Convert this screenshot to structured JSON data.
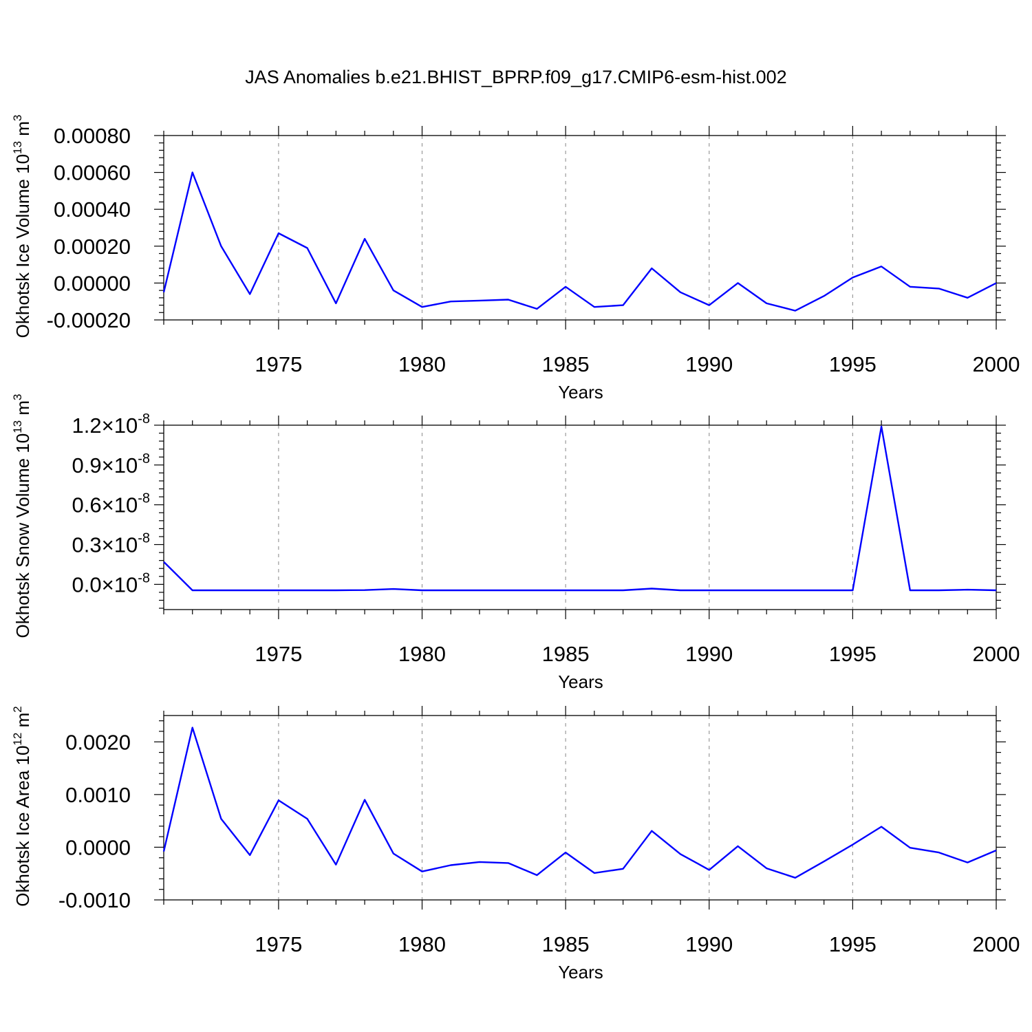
{
  "title": "JAS Anomalies b.e21.BHIST_BPRP.f09_g17.CMIP6-esm-hist.002",
  "chart_data": [
    {
      "type": "line",
      "ylabel": "Okhotsk Ice Volume",
      "yunit": {
        "base": "10",
        "exp": "13",
        "unit": "m",
        "unit_exp": "3"
      },
      "xlabel": "Years",
      "xlim": [
        1971,
        2000
      ],
      "ylim": [
        -0.0002,
        0.0008
      ],
      "ymajor": [
        -0.0002,
        0.0,
        0.0002,
        0.0004,
        0.0006,
        0.0008
      ],
      "ytick_labels": [
        "-0.00020",
        "0.00000",
        "0.00020",
        "0.00040",
        "0.00060",
        "0.00080"
      ],
      "xticks": [
        1975,
        1980,
        1985,
        1990,
        1995,
        2000
      ],
      "xtick_labels": [
        "1975",
        "1980",
        "1985",
        "1990",
        "1995",
        "2000"
      ],
      "color": "#0000ff",
      "x": [
        1971,
        1972,
        1973,
        1974,
        1975,
        1976,
        1977,
        1978,
        1979,
        1980,
        1981,
        1982,
        1983,
        1984,
        1985,
        1986,
        1987,
        1988,
        1989,
        1990,
        1991,
        1992,
        1993,
        1994,
        1995,
        1996,
        1997,
        1998,
        1999,
        2000
      ],
      "values": [
        -5e-05,
        0.0006,
        0.0002,
        -6e-05,
        0.00027,
        0.00019,
        -0.00011,
        0.00024,
        -4e-05,
        -0.00013,
        -0.0001,
        -9.5e-05,
        -9e-05,
        -0.00014,
        -2e-05,
        -0.00013,
        -0.00012,
        8e-05,
        -5e-05,
        -0.00012,
        0.0,
        -0.00011,
        -0.00015,
        -7e-05,
        3e-05,
        9e-05,
        -2e-05,
        -3e-05,
        -8e-05,
        0.0
      ]
    },
    {
      "type": "line",
      "ylabel": "Okhotsk Snow Volume",
      "yunit": {
        "base": "10",
        "exp": "13",
        "unit": "m",
        "unit_exp": "3"
      },
      "xlabel": "Years",
      "xlim": [
        1971,
        2000
      ],
      "ylim": [
        -0.19,
        1.2
      ],
      "ymajor": [
        0.0,
        0.3,
        0.6,
        0.9,
        1.2
      ],
      "ytick_labels": [
        "0.0",
        "0.3",
        "0.6",
        "0.9",
        "1.2"
      ],
      "ytick_suffix": {
        "times": "×",
        "base": "10",
        "exp": "-8"
      },
      "xticks": [
        1975,
        1980,
        1985,
        1990,
        1995,
        2000
      ],
      "xtick_labels": [
        "1975",
        "1980",
        "1985",
        "1990",
        "1995",
        "2000"
      ],
      "color": "#0000ff",
      "x": [
        1971,
        1972,
        1973,
        1974,
        1975,
        1976,
        1977,
        1978,
        1979,
        1980,
        1981,
        1982,
        1983,
        1984,
        1985,
        1986,
        1987,
        1988,
        1989,
        1990,
        1991,
        1992,
        1993,
        1994,
        1995,
        1996,
        1997,
        1998,
        1999,
        2000
      ],
      "values": [
        0.17,
        -0.045,
        -0.045,
        -0.045,
        -0.045,
        -0.045,
        -0.045,
        -0.043,
        -0.035,
        -0.045,
        -0.045,
        -0.045,
        -0.045,
        -0.045,
        -0.045,
        -0.045,
        -0.045,
        -0.032,
        -0.045,
        -0.045,
        -0.045,
        -0.045,
        -0.045,
        -0.045,
        -0.045,
        1.19,
        -0.045,
        -0.045,
        -0.04,
        -0.045
      ]
    },
    {
      "type": "line",
      "ylabel": "Okhotsk Ice Area",
      "yunit": {
        "base": "10",
        "exp": "12",
        "unit": "m",
        "unit_exp": "2"
      },
      "xlabel": "Years",
      "xlim": [
        1971,
        2000
      ],
      "ylim": [
        -0.001,
        0.0025
      ],
      "ymajor": [
        -0.001,
        0.0,
        0.001,
        0.002
      ],
      "ytick_labels": [
        "-0.0010",
        "0.0000",
        "0.0010",
        "0.0020"
      ],
      "xticks": [
        1975,
        1980,
        1985,
        1990,
        1995,
        2000
      ],
      "xtick_labels": [
        "1975",
        "1980",
        "1985",
        "1990",
        "1995",
        "2000"
      ],
      "color": "#0000ff",
      "x": [
        1971,
        1972,
        1973,
        1974,
        1975,
        1976,
        1977,
        1978,
        1979,
        1980,
        1981,
        1982,
        1983,
        1984,
        1985,
        1986,
        1987,
        1988,
        1989,
        1990,
        1991,
        1992,
        1993,
        1994,
        1995,
        1996,
        1997,
        1998,
        1999,
        2000
      ],
      "values": [
        -8e-05,
        0.00227,
        0.00054,
        -0.00015,
        0.00089,
        0.00054,
        -0.00033,
        0.0009,
        -0.00012,
        -0.00046,
        -0.00034,
        -0.00028,
        -0.0003,
        -0.00053,
        -0.0001,
        -0.00049,
        -0.00041,
        0.00031,
        -0.00013,
        -0.00043,
        2e-05,
        -0.0004,
        -0.00058,
        -0.00027,
        5e-05,
        0.00039,
        -1e-05,
        -0.0001,
        -0.00029,
        -6e-05
      ]
    }
  ]
}
